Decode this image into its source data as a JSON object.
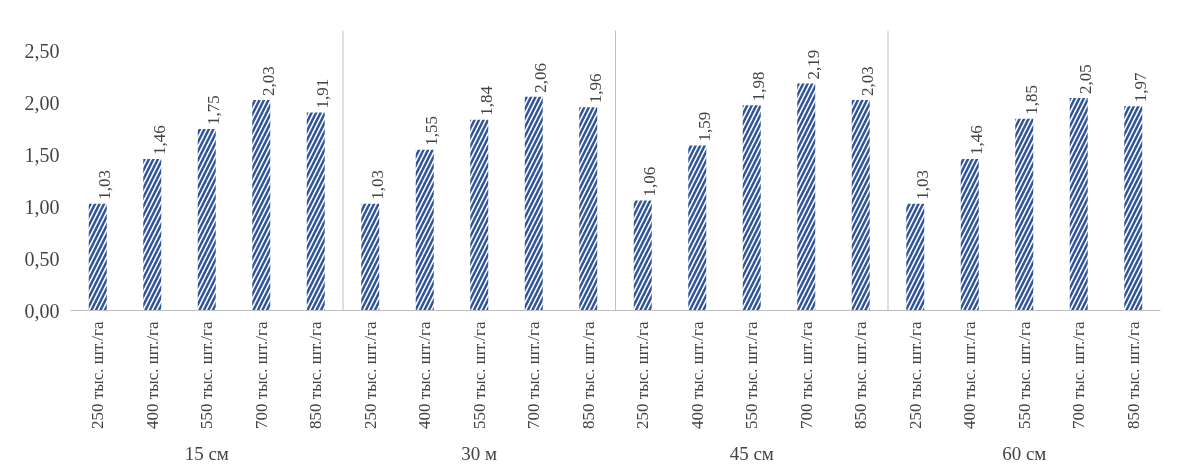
{
  "chart_data": {
    "type": "bar",
    "categories": [
      "250 тыс. шт./га",
      "400 тыс. шт./га",
      "550 тыс. шт./га",
      "700 тыс. шт./га",
      "850 тыс. шт./га",
      "250 тыс. шт./га",
      "400 тыс. шт./га",
      "550 тыс. шт./га",
      "700 тыс. шт./га",
      "850 тыс. шт./га",
      "250 тыс. шт./га",
      "400 тыс. шт./га",
      "550 тыс. шт./га",
      "700 тыс. шт./га",
      "850 тыс. шт./га",
      "250 тыс. шт./га",
      "400 тыс. шт./га",
      "550 тыс. шт./га",
      "700 тыс. шт./га",
      "850 тыс. шт./га"
    ],
    "values": [
      1.03,
      1.46,
      1.75,
      2.03,
      1.91,
      1.03,
      1.55,
      1.84,
      2.06,
      1.96,
      1.06,
      1.59,
      1.98,
      2.19,
      2.03,
      1.03,
      1.46,
      1.85,
      2.05,
      1.97
    ],
    "color": "#2f5597",
    "annotations": [
      "15 см",
      "30 м",
      "45 см",
      "60 см"
    ],
    "ylim": [
      0,
      2.5
    ],
    "yticks": [
      {
        "value": 0,
        "label": "0,00"
      },
      {
        "value": 0.5,
        "label": "0,50"
      },
      {
        "value": 1,
        "label": "1,00"
      },
      {
        "value": 1.5,
        "label": "1,50"
      },
      {
        "value": 2,
        "label": "2,00"
      },
      {
        "value": 2.5,
        "label": "2,50"
      }
    ],
    "value_labels": [
      "1,03",
      "1,46",
      "1,75",
      "2,03",
      "1,91",
      "1,03",
      "1,55",
      "1,84",
      "2,06",
      "1,96",
      "1,06",
      "1,59",
      "1,98",
      "2,19",
      "2,03",
      "1,03",
      "1,46",
      "1,85",
      "2,05",
      "1,97"
    ]
  }
}
